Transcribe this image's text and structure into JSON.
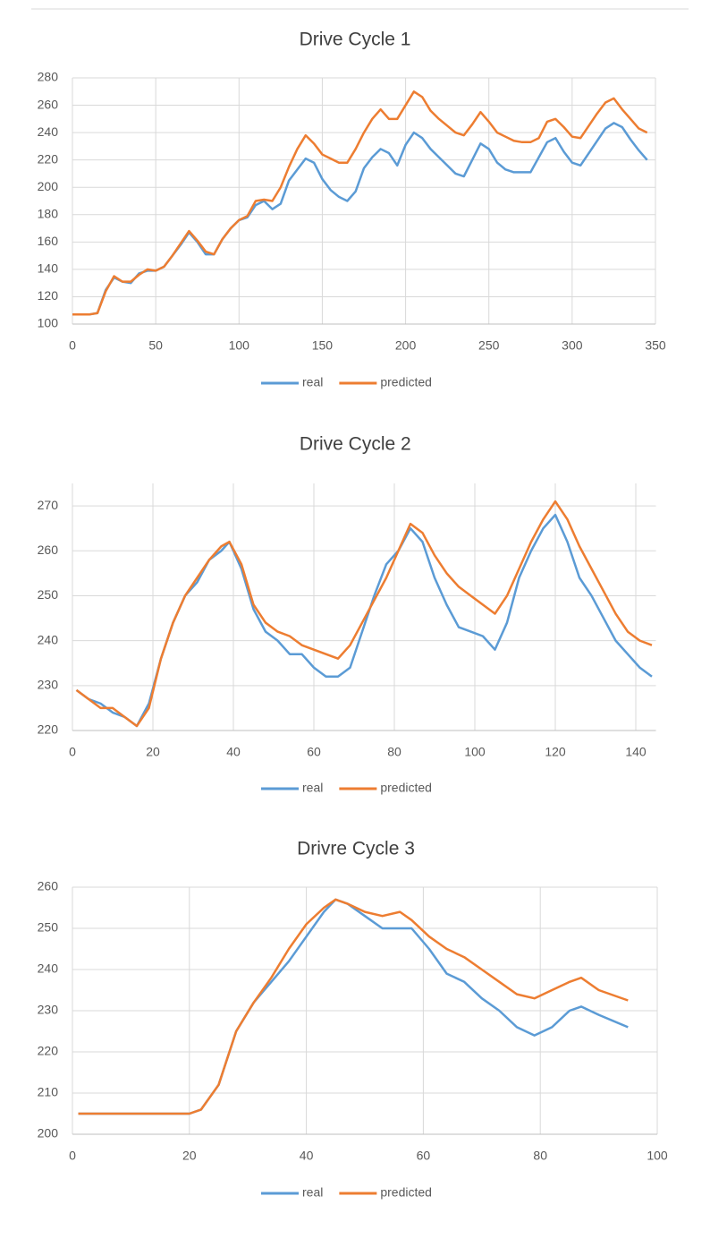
{
  "chart_data": [
    {
      "type": "line",
      "title": "Drive Cycle 1",
      "x": [
        0,
        5,
        10,
        15,
        20,
        25,
        30,
        35,
        40,
        45,
        50,
        55,
        60,
        65,
        70,
        75,
        80,
        85,
        90,
        95,
        100,
        105,
        110,
        115,
        120,
        125,
        130,
        135,
        140,
        145,
        150,
        155,
        160,
        165,
        170,
        175,
        180,
        185,
        190,
        195,
        200,
        205,
        210,
        215,
        220,
        225,
        230,
        235,
        240,
        245,
        250,
        255,
        260,
        265,
        270,
        275,
        280,
        285,
        290,
        295,
        300,
        305,
        310,
        315,
        320,
        325,
        330,
        335,
        340,
        345
      ],
      "series": [
        {
          "name": "real",
          "color": "#5b9bd5",
          "values": [
            107,
            107,
            107,
            108,
            125,
            134,
            131,
            130,
            137,
            139,
            139,
            142,
            150,
            158,
            167,
            160,
            151,
            151,
            162,
            170,
            176,
            178,
            187,
            190,
            184,
            188,
            205,
            213,
            221,
            218,
            206,
            198,
            193,
            190,
            197,
            214,
            222,
            228,
            225,
            216,
            231,
            240,
            236,
            228,
            222,
            216,
            210,
            208,
            220,
            232,
            228,
            218,
            213,
            211,
            211,
            211,
            222,
            233,
            236,
            226,
            218,
            216,
            225,
            234,
            243,
            247,
            244,
            235,
            227,
            220
          ]
        },
        {
          "name": "predicted",
          "color": "#ed7d31",
          "values": [
            107,
            107,
            107,
            108,
            124,
            135,
            131,
            131,
            136,
            140,
            139,
            142,
            150,
            159,
            168,
            161,
            153,
            151,
            162,
            170,
            176,
            179,
            190,
            191,
            190,
            200,
            215,
            228,
            238,
            232,
            224,
            221,
            218,
            218,
            228,
            240,
            250,
            257,
            250,
            250,
            260,
            270,
            266,
            256,
            250,
            245,
            240,
            238,
            246,
            255,
            248,
            240,
            237,
            234,
            233,
            233,
            236,
            248,
            250,
            244,
            237,
            236,
            245,
            254,
            262,
            265,
            257,
            250,
            243,
            240
          ]
        }
      ],
      "xlim": [
        0,
        350
      ],
      "xticks": [
        0,
        50,
        100,
        150,
        200,
        250,
        300,
        350
      ],
      "ylim": [
        100,
        280
      ],
      "yticks": [
        100,
        120,
        140,
        160,
        180,
        200,
        220,
        240,
        260,
        280
      ],
      "grid": true,
      "legend": "bottom"
    },
    {
      "type": "line",
      "title": "Drive Cycle 2",
      "x": [
        1,
        4,
        7,
        10,
        13,
        16,
        19,
        22,
        25,
        28,
        31,
        34,
        37,
        39,
        42,
        45,
        48,
        51,
        54,
        57,
        60,
        63,
        66,
        69,
        72,
        75,
        78,
        81,
        84,
        87,
        90,
        93,
        96,
        99,
        102,
        105,
        108,
        111,
        114,
        117,
        120,
        123,
        126,
        129,
        132,
        135,
        138,
        141,
        144
      ],
      "series": [
        {
          "name": "real",
          "color": "#5b9bd5",
          "values": [
            229,
            227,
            226,
            224,
            223,
            221,
            226,
            236,
            244,
            250,
            253,
            258,
            260,
            262,
            256,
            247,
            242,
            240,
            237,
            237,
            234,
            232,
            232,
            234,
            242,
            250,
            257,
            260,
            265,
            262,
            254,
            248,
            243,
            242,
            241,
            238,
            244,
            254,
            260,
            265,
            268,
            262,
            254,
            250,
            245,
            240,
            237,
            234,
            232
          ]
        },
        {
          "name": "predicted",
          "color": "#ed7d31",
          "values": [
            229,
            227,
            225,
            225,
            223,
            221,
            225,
            236,
            244,
            250,
            254,
            258,
            261,
            262,
            257,
            248,
            244,
            242,
            241,
            239,
            238,
            237,
            236,
            239,
            244,
            249,
            254,
            260,
            266,
            264,
            259,
            255,
            252,
            250,
            248,
            246,
            250,
            256,
            262,
            267,
            271,
            267,
            261,
            256,
            251,
            246,
            242,
            240,
            239
          ]
        }
      ],
      "xlim": [
        0,
        145
      ],
      "xticks": [
        0,
        20,
        40,
        60,
        80,
        100,
        120,
        140
      ],
      "ylim": [
        220,
        275
      ],
      "yticks": [
        220,
        230,
        240,
        250,
        260,
        270
      ],
      "grid": true,
      "legend": "bottom"
    },
    {
      "type": "line",
      "title": "Drivre Cycle 3",
      "x": [
        1,
        5,
        10,
        15,
        20,
        22,
        25,
        28,
        31,
        34,
        37,
        40,
        43,
        45,
        47,
        50,
        53,
        56,
        58,
        61,
        64,
        67,
        70,
        73,
        76,
        79,
        82,
        85,
        87,
        90,
        95
      ],
      "series": [
        {
          "name": "real",
          "color": "#5b9bd5",
          "values": [
            205,
            205,
            205,
            205,
            205,
            206,
            212,
            225,
            232,
            237,
            242,
            248,
            254,
            257,
            256,
            253,
            250,
            250,
            250,
            245,
            239,
            237,
            233,
            230,
            226,
            224,
            226,
            230,
            231,
            229,
            226
          ]
        },
        {
          "name": "predicted",
          "color": "#ed7d31",
          "values": [
            205,
            205,
            205,
            205,
            205,
            206,
            212,
            225,
            232,
            238,
            245,
            251,
            255,
            257,
            256,
            254,
            253,
            254,
            252,
            248,
            245,
            243,
            240,
            237,
            234,
            233,
            235,
            237,
            238,
            235,
            232.5
          ]
        }
      ],
      "xlim": [
        0,
        100
      ],
      "xticks": [
        0,
        20,
        40,
        60,
        80,
        100
      ],
      "ylim": [
        200,
        260
      ],
      "yticks": [
        200,
        210,
        220,
        230,
        240,
        250,
        260
      ],
      "grid": true,
      "legend": "bottom"
    }
  ]
}
